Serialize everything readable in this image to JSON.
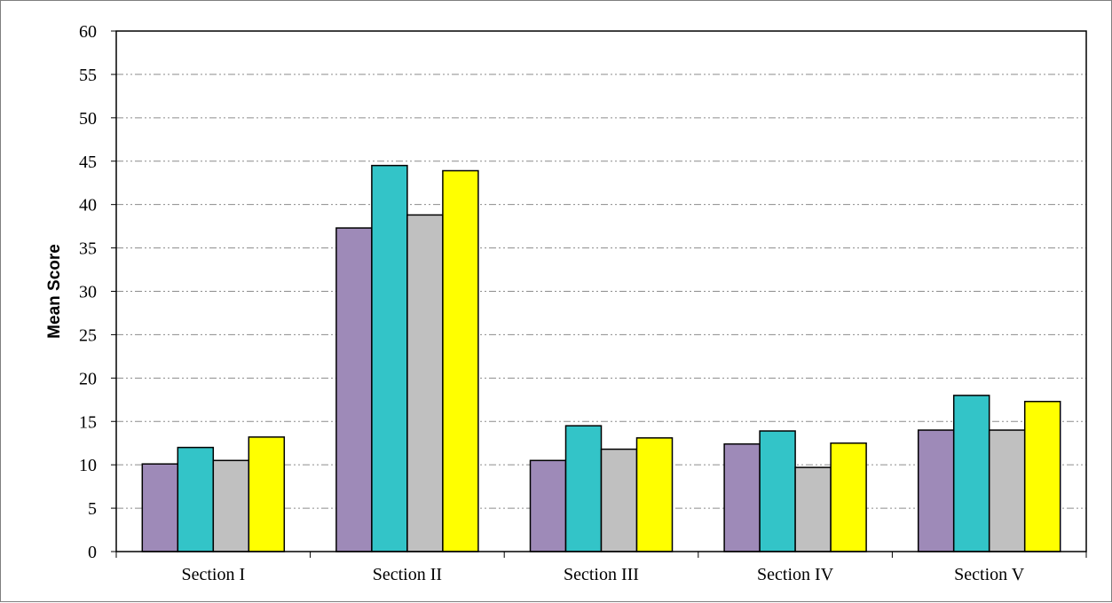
{
  "chart_data": {
    "type": "bar",
    "title": "",
    "xlabel": "",
    "ylabel": "Mean Score",
    "ylim": [
      0,
      60
    ],
    "ytick_step": 5,
    "yticks": [
      "0",
      "5",
      "10",
      "15",
      "20",
      "25",
      "30",
      "35",
      "40",
      "45",
      "50",
      "55",
      "60"
    ],
    "grid": true,
    "legend": "none",
    "categories": [
      "Section I",
      "Section II",
      "Section III",
      "Section IV",
      "Section V"
    ],
    "series": [
      {
        "color": "#9e8ab8",
        "values": [
          10.1,
          37.3,
          10.5,
          12.4,
          14.0
        ]
      },
      {
        "color": "#33c4c8",
        "values": [
          12.0,
          44.5,
          14.5,
          13.9,
          18.0
        ]
      },
      {
        "color": "#c0c0c0",
        "values": [
          10.5,
          38.8,
          11.8,
          9.7,
          14.0
        ]
      },
      {
        "color": "#ffff00",
        "values": [
          13.2,
          43.9,
          13.1,
          12.5,
          17.3
        ]
      }
    ]
  }
}
